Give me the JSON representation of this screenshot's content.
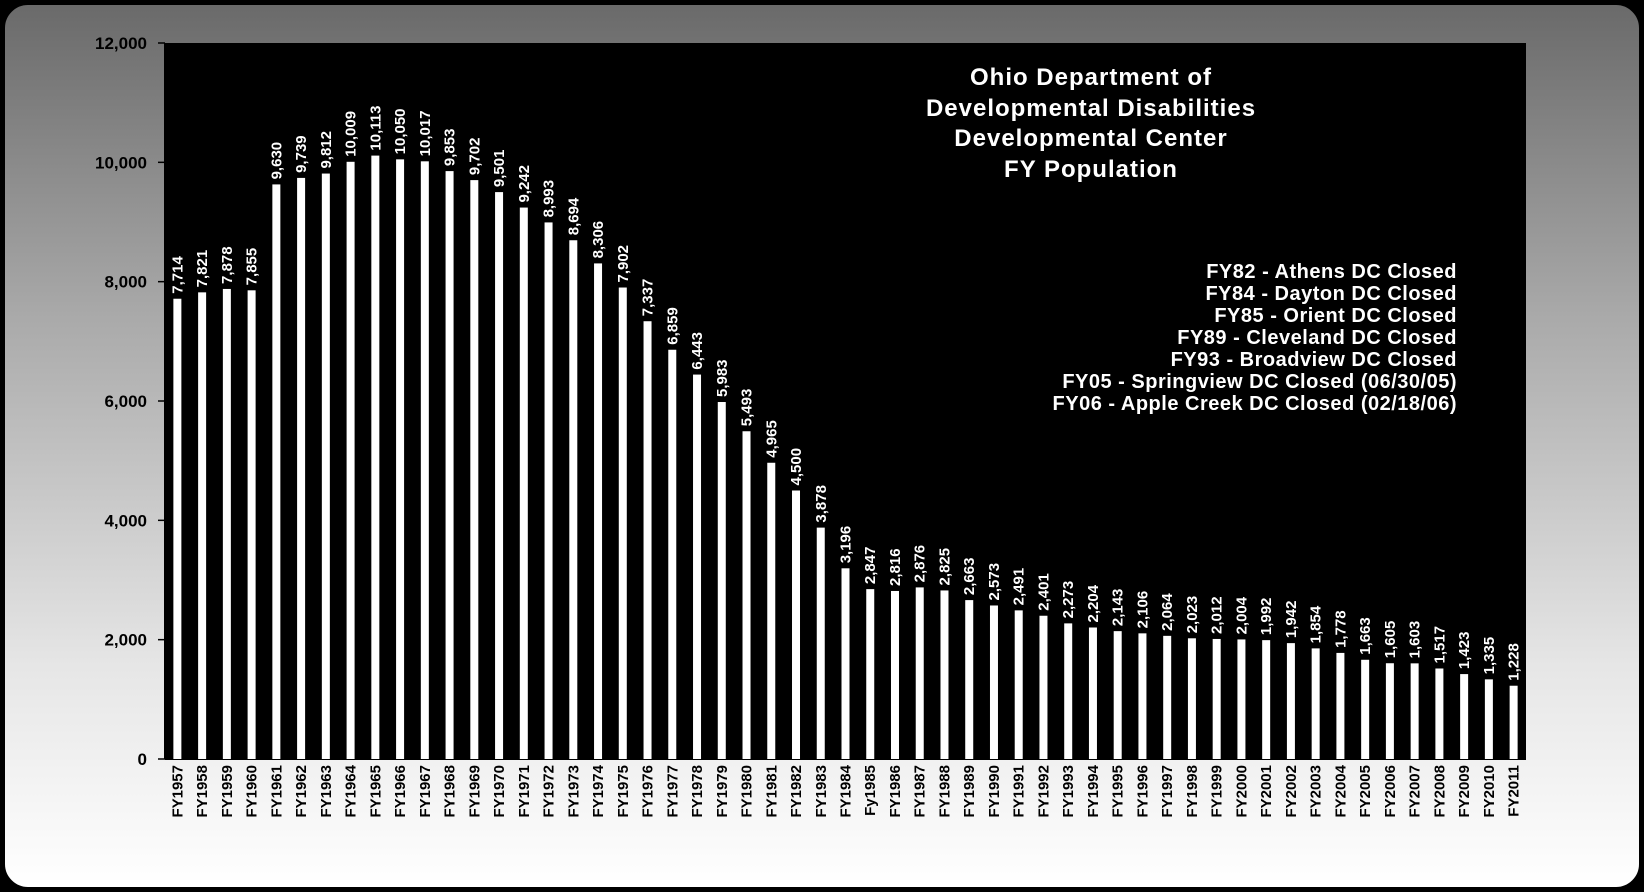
{
  "chart_data": {
    "type": "bar",
    "title": [
      "Ohio Department of",
      "Developmental Disabilities",
      "Developmental Center",
      "FY Population"
    ],
    "xlabel": "",
    "ylabel": "",
    "ylim": [
      0,
      12000
    ],
    "yticks": [
      "0",
      "2,000",
      "4,000",
      "6,000",
      "8,000",
      "10,000",
      "12,000"
    ],
    "grid": false,
    "annotations": [
      "FY82 - Athens DC Closed",
      "FY84 - Dayton DC Closed",
      "FY85 - Orient DC Closed",
      "FY89 - Cleveland DC Closed",
      "FY93 - Broadview DC Closed",
      "FY05 - Springview DC Closed (06/30/05)",
      "FY06 - Apple Creek DC Closed (02/18/06)"
    ],
    "colors": {
      "plot_background": "#000000",
      "bar": "#ffffff",
      "label": "#ffffff"
    },
    "categories": [
      "FY1957",
      "FY1958",
      "FY1959",
      "FY1960",
      "FY1961",
      "FY1962",
      "FY1963",
      "FY1964",
      "FY1965",
      "FY1966",
      "FY1967",
      "FY1968",
      "FY1969",
      "FY1970",
      "FY1971",
      "FY1972",
      "FY1973",
      "FY1974",
      "FY1975",
      "FY1976",
      "FY1977",
      "FY1978",
      "FY1979",
      "FY1980",
      "FY1981",
      "FY1982",
      "FY1983",
      "FY1984",
      "Fy1985",
      "FY1986",
      "FY1987",
      "FY1988",
      "FY1989",
      "FY1990",
      "FY1991",
      "FY1992",
      "FY1993",
      "FY1994",
      "FY1995",
      "FY1996",
      "FY1997",
      "FY1998",
      "FY1999",
      "FY2000",
      "FY2001",
      "FY2002",
      "FY2003",
      "FY2004",
      "FY2005",
      "FY2006",
      "FY2007",
      "FY2008",
      "FY2009",
      "FY2010",
      "FY2011"
    ],
    "values": [
      7714,
      7821,
      7878,
      7855,
      9630,
      9739,
      9812,
      10009,
      10113,
      10050,
      10017,
      9853,
      9702,
      9501,
      9242,
      8993,
      8694,
      8306,
      7902,
      7337,
      6859,
      6443,
      5983,
      5493,
      4965,
      4500,
      3878,
      3196,
      2847,
      2816,
      2876,
      2825,
      2663,
      2573,
      2491,
      2401,
      2273,
      2204,
      2143,
      2106,
      2064,
      2023,
      2012,
      2004,
      1992,
      1942,
      1854,
      1778,
      1663,
      1605,
      1603,
      1517,
      1423,
      1335,
      1228
    ],
    "data_labels": [
      "7,714",
      "7,821",
      "7,878",
      "7,855",
      "9,630",
      "9,739",
      "9,812",
      "10,009",
      "10,113",
      "10,050",
      "10,017",
      "9,853",
      "9,702",
      "9,501",
      "9,242",
      "8,993",
      "8,694",
      "8,306",
      "7,902",
      "7,337",
      "6,859",
      "6,443",
      "5,983",
      "5,493",
      "4,965",
      "4,500",
      "3,878",
      "3,196",
      "2,847",
      "2,816",
      "2,876",
      "2,825",
      "2,663",
      "2,573",
      "2,491",
      "2,401",
      "2,273",
      "2,204",
      "2,143",
      "2,106",
      "2,064",
      "2,023",
      "2,012",
      "2,004",
      "1,992",
      "1,942",
      "1,854",
      "1,778",
      "1,663",
      "1,605",
      "1,603",
      "1,517",
      "1,423",
      "1,335",
      "1,228"
    ]
  }
}
